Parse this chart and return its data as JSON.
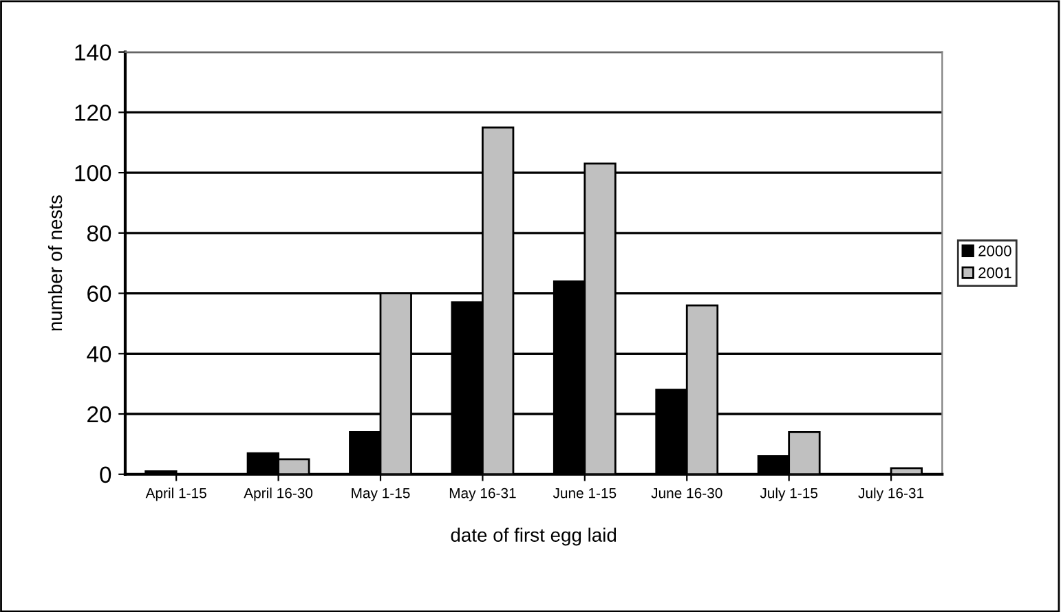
{
  "chart_data": {
    "type": "bar",
    "xlabel": "date of first egg laid",
    "ylabel": "number of nests",
    "categories": [
      "April 1-15",
      "April 16-30",
      "May 1-15",
      "May 16-31",
      "June 1-15",
      "June 16-30",
      "July 1-15",
      "July 16-31"
    ],
    "series": [
      {
        "name": "2000",
        "color": "#000000",
        "values": [
          1,
          7,
          14,
          57,
          64,
          28,
          6,
          null
        ]
      },
      {
        "name": "2001",
        "color": "#c0c0c0",
        "values": [
          null,
          5,
          60,
          115,
          103,
          56,
          14,
          2
        ]
      }
    ],
    "ylim": [
      0,
      140
    ],
    "yticks": [
      0,
      20,
      40,
      60,
      80,
      100,
      120,
      140
    ],
    "grid": "y",
    "legend": "right"
  }
}
